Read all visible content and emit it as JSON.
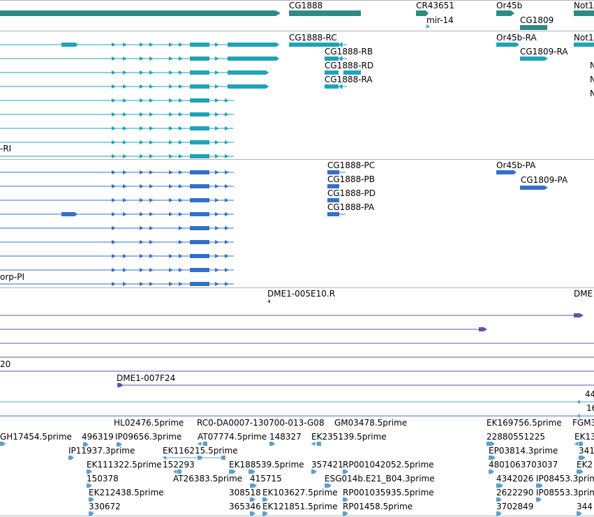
{
  "tracks": {
    "genes": {
      "labels": [
        "CG1888",
        "CR43651",
        "Or45b",
        "Not1",
        "mir-14",
        "CG1809"
      ]
    },
    "transcripts_top": {
      "labels": [
        "CG1888-RC",
        "Or45b-RA",
        "Not1",
        "CG1888-RB",
        "CG1809-RA",
        "N",
        "CG1888-RD",
        "N",
        "CG1888-RA",
        "N",
        "-RI"
      ]
    },
    "transcripts_bottom": {
      "labels": [
        "CG1888-PC",
        "Or45b-PA",
        "CG1888-PB",
        "CG1809-PA",
        "CG1888-PD",
        "CG1888-PA",
        "orp-PI"
      ]
    },
    "clones": {
      "labels": [
        "DME1-005E10.R",
        "DME",
        "20",
        "DME1-007F24",
        "44",
        "16"
      ]
    },
    "ests": {
      "labels": [
        "HL02476.5prime",
        "RC0-DA0007-130700-013-G08",
        "GM03478.5prime",
        "EK169756.5prime",
        "FGM3",
        "GH17454.5prime",
        "496319",
        "IP09656.3prime",
        "AT07774.5prime",
        "148327",
        "EK235139.5prime",
        "22880551225",
        "EK13",
        "IP11937.3prime",
        "EK116215.5prime",
        "EP03814.3prime",
        "341",
        "EK111322.5prime",
        "152293",
        "EK188539.5prime",
        "357421",
        "RP001042052.5prime",
        "4801063703037",
        "EK2",
        "150378",
        "AT26383.5prime",
        "415715",
        "ESG014b.E21_B04.3prime",
        "4342026",
        "IP08453.3prim",
        "EK212438.5prime",
        "308518",
        "EK103627.5prime",
        "RP001035935.5prime",
        "2622290",
        "IP08553.3prim",
        "330672",
        "365346",
        "EK121851.5prime",
        "RP01458.5prime",
        "3702849",
        "344"
      ]
    }
  }
}
